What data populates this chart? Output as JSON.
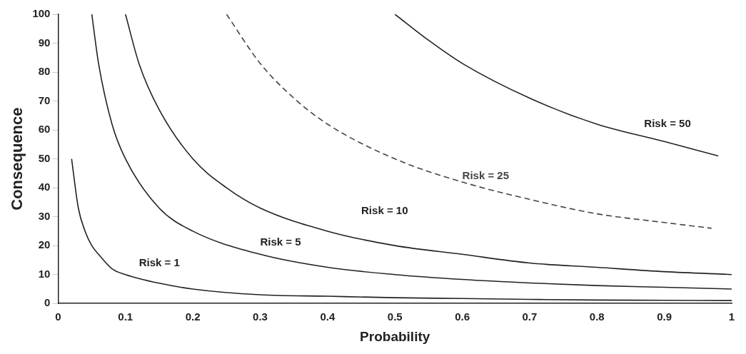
{
  "chart_data": {
    "type": "line",
    "xlabel": "Probability",
    "ylabel": "Consequence",
    "xlim": [
      0,
      1
    ],
    "xticks": [
      0,
      0.1,
      0.2,
      0.3,
      0.4,
      0.5,
      0.6,
      0.7,
      0.8,
      0.9,
      1
    ],
    "ylim": [
      0,
      100
    ],
    "yticks": [
      0,
      10,
      20,
      30,
      40,
      50,
      60,
      70,
      80,
      90,
      100
    ],
    "grid": false,
    "legend": false,
    "marker": "none",
    "series": [
      {
        "name": "Risk = 1",
        "color": "#222222",
        "line_style": "solid",
        "x": [
          0.02,
          0.03,
          0.04,
          0.05,
          0.06,
          0.08,
          0.1,
          0.15,
          0.2,
          0.3,
          0.4,
          0.5,
          0.6,
          0.7,
          0.8,
          0.9,
          1
        ],
        "values": [
          50,
          33,
          25,
          20,
          17,
          12,
          10,
          7,
          5,
          3,
          2.5,
          2,
          1.7,
          1.4,
          1.2,
          1.1,
          1
        ]
      },
      {
        "name": "Risk = 5",
        "color": "#222222",
        "line_style": "solid",
        "x": [
          0.05,
          0.06,
          0.08,
          0.1,
          0.15,
          0.2,
          0.3,
          0.4,
          0.5,
          0.6,
          0.7,
          0.8,
          0.9,
          1
        ],
        "values": [
          100,
          83,
          62,
          50,
          33,
          25,
          17,
          12.5,
          10,
          8.3,
          7.1,
          6.2,
          5.6,
          5
        ]
      },
      {
        "name": "Risk = 10",
        "color": "#222222",
        "line_style": "solid",
        "x": [
          0.1,
          0.12,
          0.15,
          0.2,
          0.25,
          0.3,
          0.4,
          0.5,
          0.6,
          0.7,
          0.8,
          0.9,
          1
        ],
        "values": [
          100,
          83,
          67,
          50,
          40,
          33,
          25,
          20,
          17,
          14,
          12.5,
          11,
          10
        ]
      },
      {
        "name": "Risk = 25",
        "color": "#444444",
        "line_style": "dashed",
        "x": [
          0.25,
          0.3,
          0.35,
          0.4,
          0.5,
          0.6,
          0.7,
          0.8,
          0.9,
          0.97
        ],
        "values": [
          100,
          83,
          71,
          62,
          50,
          42,
          36,
          31,
          28,
          26
        ]
      },
      {
        "name": "Risk = 50",
        "color": "#222222",
        "line_style": "solid",
        "x": [
          0.5,
          0.55,
          0.6,
          0.7,
          0.8,
          0.9,
          0.98
        ],
        "values": [
          100,
          91,
          83,
          71,
          62,
          56,
          51
        ]
      }
    ]
  }
}
